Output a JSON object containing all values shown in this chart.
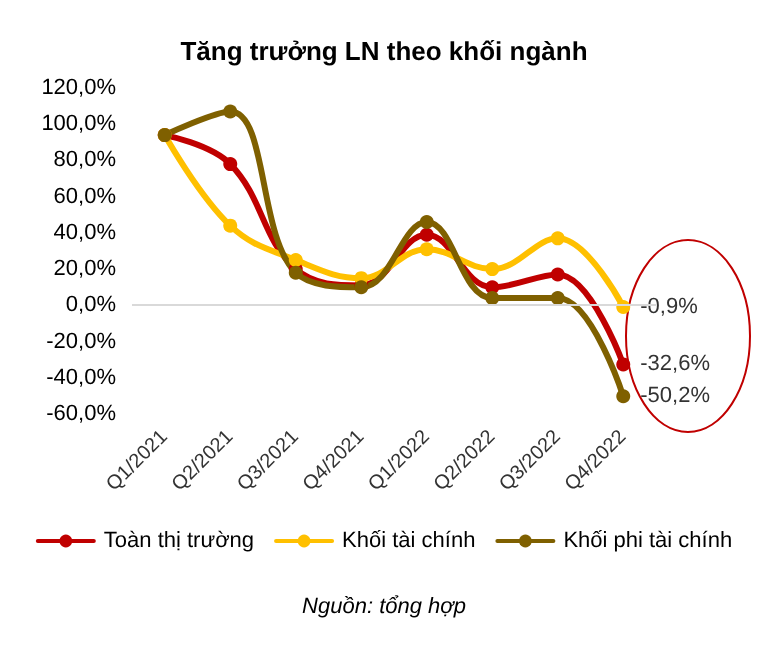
{
  "chart_data": {
    "type": "line",
    "title": "Tăng trưởng LN theo khối ngành",
    "categories": [
      "Q1/2021",
      "Q2/2021",
      "Q3/2021",
      "Q4/2021",
      "Q1/2022",
      "Q2/2022",
      "Q3/2022",
      "Q4/2022"
    ],
    "series": [
      {
        "name": "Toàn thị trường",
        "color": "#c00000",
        "values": [
          94,
          78,
          20,
          11,
          39,
          10,
          17,
          -32.6
        ],
        "value_labels": [
          null,
          null,
          null,
          null,
          null,
          null,
          null,
          "-32,6%"
        ]
      },
      {
        "name": "Khối tài chính",
        "color": "#ffc000",
        "values": [
          94,
          44,
          25,
          15,
          31,
          20,
          37,
          -0.9
        ],
        "value_labels": [
          null,
          null,
          null,
          null,
          null,
          null,
          null,
          "-0,9%"
        ]
      },
      {
        "name": "Khối phi tài chính",
        "color": "#7f6000",
        "values": [
          94,
          107,
          18,
          10,
          46,
          4,
          4,
          -50.2
        ],
        "value_labels": [
          null,
          null,
          null,
          null,
          null,
          null,
          null,
          "-50,2%"
        ]
      }
    ],
    "ylim": [
      -60,
      120
    ],
    "yticks": [
      {
        "value": -60,
        "label": "-60,0%"
      },
      {
        "value": -40,
        "label": "-40,0%"
      },
      {
        "value": -20,
        "label": "-20,0%"
      },
      {
        "value": 0,
        "label": "0,0%"
      },
      {
        "value": 20,
        "label": "20,0%"
      },
      {
        "value": 40,
        "label": "40,0%"
      },
      {
        "value": 60,
        "label": "60,0%"
      },
      {
        "value": 80,
        "label": "80,0%"
      },
      {
        "value": 100,
        "label": "100,0%"
      },
      {
        "value": 120,
        "label": "120,0%"
      }
    ],
    "ref_lines": [
      {
        "axis": "y",
        "value": 0,
        "color": "#d9d9d9"
      }
    ],
    "legend": "bottom",
    "marker": "circle",
    "line_style": "solid",
    "annotations": [
      "Nguồn: tổng hợp"
    ]
  }
}
